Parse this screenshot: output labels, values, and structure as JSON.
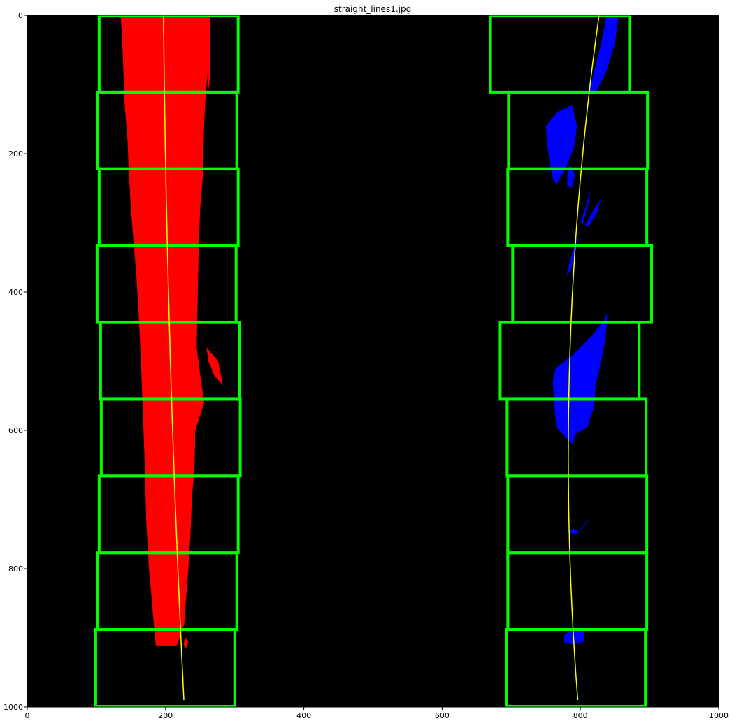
{
  "title": "straight_lines1.jpg",
  "axes": {
    "xlim": [
      0,
      1000
    ],
    "ylim": [
      1000,
      0
    ],
    "x_ticks": [
      {
        "value": 0,
        "label": "0"
      },
      {
        "value": 200,
        "label": "200"
      },
      {
        "value": 400,
        "label": "400"
      },
      {
        "value": 600,
        "label": "600"
      },
      {
        "value": 800,
        "label": "800"
      },
      {
        "value": 1000,
        "label": "1000"
      }
    ],
    "y_ticks": [
      {
        "value": 0,
        "label": "0"
      },
      {
        "value": 200,
        "label": "200"
      },
      {
        "value": 400,
        "label": "400"
      },
      {
        "value": 600,
        "label": "600"
      },
      {
        "value": 800,
        "label": "800"
      },
      {
        "value": 1000,
        "label": "1000"
      }
    ]
  },
  "colors": {
    "background": "#000000",
    "left_lane_pixels": "#ff0000",
    "right_lane_pixels": "#0000ff",
    "search_windows": "#00ff00",
    "fit_line": "#ffff00"
  },
  "left_windows": [
    {
      "x1": 104,
      "x2": 305,
      "y1": 0,
      "y2": 111
    },
    {
      "x1": 102,
      "x2": 303,
      "y1": 111,
      "y2": 222
    },
    {
      "x1": 104,
      "x2": 305,
      "y1": 222,
      "y2": 333
    },
    {
      "x1": 101,
      "x2": 302,
      "y1": 333,
      "y2": 444
    },
    {
      "x1": 106,
      "x2": 307,
      "y1": 444,
      "y2": 555
    },
    {
      "x1": 107,
      "x2": 308,
      "y1": 555,
      "y2": 666
    },
    {
      "x1": 104,
      "x2": 305,
      "y1": 666,
      "y2": 777
    },
    {
      "x1": 102,
      "x2": 303,
      "y1": 777,
      "y2": 888
    },
    {
      "x1": 99,
      "x2": 300,
      "y1": 888,
      "y2": 999
    }
  ],
  "right_windows": [
    {
      "x1": 670,
      "x2": 871,
      "y1": 0,
      "y2": 111
    },
    {
      "x1": 696,
      "x2": 897,
      "y1": 111,
      "y2": 222
    },
    {
      "x1": 695,
      "x2": 896,
      "y1": 222,
      "y2": 333
    },
    {
      "x1": 702,
      "x2": 903,
      "y1": 333,
      "y2": 444
    },
    {
      "x1": 684,
      "x2": 885,
      "y1": 444,
      "y2": 555
    },
    {
      "x1": 694,
      "x2": 895,
      "y1": 555,
      "y2": 666
    },
    {
      "x1": 695,
      "x2": 896,
      "y1": 666,
      "y2": 777
    },
    {
      "x1": 695,
      "x2": 896,
      "y1": 777,
      "y2": 888
    },
    {
      "x1": 693,
      "x2": 894,
      "y1": 888,
      "y2": 999
    }
  ],
  "left_pixels": [
    [
      [
        135,
        0
      ],
      [
        265,
        0
      ],
      [
        264,
        30
      ],
      [
        261,
        80
      ],
      [
        257,
        130
      ],
      [
        255,
        180
      ],
      [
        254,
        230
      ],
      [
        250,
        280
      ],
      [
        248,
        330
      ],
      [
        247,
        380
      ],
      [
        246,
        430
      ],
      [
        245,
        480
      ],
      [
        250,
        520
      ],
      [
        256,
        560
      ],
      [
        243,
        600
      ],
      [
        242,
        650
      ],
      [
        238,
        700
      ],
      [
        236,
        750
      ],
      [
        233,
        800
      ],
      [
        229,
        850
      ],
      [
        227,
        880
      ],
      [
        216,
        912
      ],
      [
        186,
        912
      ],
      [
        183,
        880
      ],
      [
        176,
        800
      ],
      [
        172,
        730
      ],
      [
        170,
        650
      ],
      [
        167,
        570
      ],
      [
        164,
        490
      ],
      [
        161,
        430
      ],
      [
        158,
        380
      ],
      [
        154,
        330
      ],
      [
        150,
        280
      ],
      [
        147,
        230
      ],
      [
        145,
        180
      ],
      [
        141,
        130
      ],
      [
        139,
        80
      ],
      [
        137,
        30
      ]
    ],
    [
      [
        224,
        0
      ],
      [
        263,
        0
      ],
      [
        265,
        60
      ],
      [
        263,
        110
      ],
      [
        258,
        60
      ],
      [
        242,
        40
      ],
      [
        226,
        25
      ]
    ],
    [
      [
        259,
        480
      ],
      [
        276,
        500
      ],
      [
        283,
        535
      ],
      [
        270,
        520
      ],
      [
        262,
        500
      ]
    ],
    [
      [
        228,
        900
      ],
      [
        233,
        905
      ],
      [
        230,
        915
      ],
      [
        226,
        910
      ]
    ]
  ],
  "right_pixels": [
    [
      [
        838,
        0
      ],
      [
        855,
        0
      ],
      [
        850,
        40
      ],
      [
        838,
        80
      ],
      [
        822,
        112
      ],
      [
        812,
        110
      ],
      [
        820,
        80
      ],
      [
        830,
        40
      ]
    ],
    [
      [
        750,
        160
      ],
      [
        766,
        140
      ],
      [
        788,
        130
      ],
      [
        795,
        160
      ],
      [
        791,
        190
      ],
      [
        779,
        220
      ],
      [
        765,
        245
      ],
      [
        760,
        235
      ],
      [
        755,
        210
      ],
      [
        752,
        185
      ]
    ],
    [
      [
        781,
        230
      ],
      [
        785,
        215
      ],
      [
        792,
        230
      ],
      [
        788,
        250
      ],
      [
        781,
        245
      ]
    ],
    [
      [
        800,
        300
      ],
      [
        808,
        275
      ],
      [
        815,
        250
      ],
      [
        812,
        270
      ],
      [
        804,
        300
      ]
    ],
    [
      [
        806,
        305
      ],
      [
        818,
        283
      ],
      [
        830,
        265
      ],
      [
        824,
        285
      ],
      [
        812,
        305
      ]
    ],
    [
      [
        792,
        330
      ],
      [
        798,
        320
      ],
      [
        792,
        345
      ],
      [
        786,
        370
      ],
      [
        780,
        375
      ],
      [
        785,
        355
      ]
    ],
    [
      [
        764,
        510
      ],
      [
        790,
        490
      ],
      [
        815,
        465
      ],
      [
        835,
        440
      ],
      [
        839,
        430
      ],
      [
        836,
        470
      ],
      [
        830,
        500
      ],
      [
        822,
        535
      ],
      [
        820,
        565
      ],
      [
        810,
        595
      ],
      [
        794,
        605
      ],
      [
        788,
        620
      ],
      [
        778,
        610
      ],
      [
        765,
        595
      ],
      [
        762,
        560
      ],
      [
        760,
        530
      ]
    ],
    [
      [
        777,
        895
      ],
      [
        790,
        888
      ],
      [
        805,
        890
      ],
      [
        806,
        905
      ],
      [
        790,
        910
      ],
      [
        775,
        906
      ]
    ],
    [
      [
        790,
        755
      ],
      [
        798,
        745
      ],
      [
        814,
        727
      ],
      [
        810,
        733
      ],
      [
        795,
        750
      ]
    ],
    [
      [
        781,
        745
      ],
      [
        790,
        742
      ],
      [
        797,
        746
      ],
      [
        790,
        751
      ]
    ]
  ],
  "left_fit": {
    "a": 2e-05,
    "b": 0.01,
    "c": 197,
    "y_start": 0,
    "y_end": 999
  },
  "right_fit": {
    "a": 0.00011,
    "b": -0.14,
    "c": 827,
    "y_start": 0,
    "y_end": 999
  }
}
